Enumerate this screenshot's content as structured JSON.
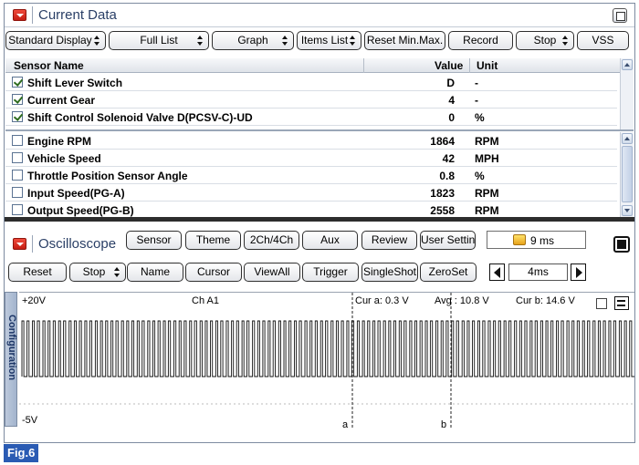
{
  "current_data": {
    "title": "Current Data",
    "buttons": [
      {
        "label": "Standard Display",
        "has_spinner": true
      },
      {
        "label": "Full List",
        "has_spinner": true
      },
      {
        "label": "Graph",
        "has_spinner": true
      },
      {
        "label": "Items List",
        "has_spinner": true
      },
      {
        "label": "Reset Min.Max.",
        "has_spinner": false
      },
      {
        "label": "Record",
        "has_spinner": false
      },
      {
        "label": "Stop",
        "has_spinner": true
      },
      {
        "label": "VSS",
        "has_spinner": false
      }
    ],
    "columns": {
      "name": "Sensor Name",
      "value": "Value",
      "unit": "Unit"
    },
    "pinned_rows": [
      {
        "name": "Shift Lever Switch",
        "value": "D",
        "unit": "-",
        "checked": true
      },
      {
        "name": "Current Gear",
        "value": "4",
        "unit": "-",
        "checked": true
      },
      {
        "name": "Shift Control Solenoid Valve D(PCSV-C)-UD",
        "value": "0",
        "unit": "%",
        "checked": true
      }
    ],
    "rows": [
      {
        "name": "Engine RPM",
        "value": "1864",
        "unit": "RPM",
        "checked": false
      },
      {
        "name": "Vehicle Speed",
        "value": "42",
        "unit": "MPH",
        "checked": false
      },
      {
        "name": "Throttle Position Sensor Angle",
        "value": "0.8",
        "unit": "%",
        "checked": false
      },
      {
        "name": "Input Speed(PG-A)",
        "value": "1823",
        "unit": "RPM",
        "checked": false
      },
      {
        "name": "Output Speed(PG-B)",
        "value": "2558",
        "unit": "RPM",
        "checked": false
      }
    ]
  },
  "oscilloscope": {
    "title": "Oscilloscope",
    "top_buttons": [
      "Sensor",
      "Theme",
      "2Ch/4Ch",
      "Aux",
      "Review",
      "User Setting"
    ],
    "time_readout": "9 ms",
    "bottom_buttons": [
      "Reset",
      "Stop",
      "Name",
      "Cursor",
      "ViewAll",
      "Trigger",
      "SingleShot",
      "ZeroSet"
    ],
    "stop_has_spinner": true,
    "timebase": "4ms",
    "side_tab": "Configuration",
    "scope": {
      "max_label": "+20V",
      "min_label": "-5V",
      "channel_label": "Ch A1",
      "cursor_a_readout": "Cur a: 0.3 V",
      "avg_readout": "Avg : 10.8 V",
      "cursor_b_readout": "Cur b: 14.6 V",
      "cursor_a_marker": "a",
      "cursor_b_marker": "b"
    }
  },
  "figure_label": "Fig.6",
  "colors": {
    "title_text": "#2a3f66",
    "collapse_icon": "#d62a1d",
    "figure_label_bg": "#2a5bb3",
    "splitter": "#2d2d2d"
  },
  "icons": [
    "collapse-icon",
    "restore-icon",
    "checkbox",
    "scroll-up-icon",
    "scroll-down-icon",
    "timer-icon",
    "stop-square-icon",
    "arrow-left-icon",
    "arrow-right-icon",
    "maximize-icon"
  ]
}
